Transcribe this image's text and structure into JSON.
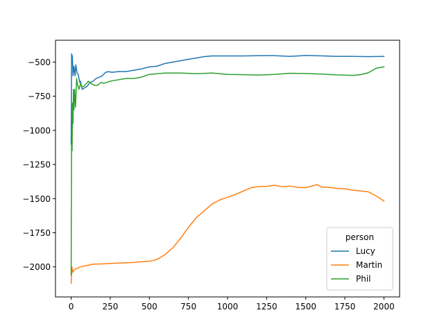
{
  "chart_data": {
    "type": "line",
    "title": "",
    "xlabel": "",
    "ylabel": "",
    "xlim": [
      -100,
      2100
    ],
    "ylim": [
      -2220,
      -340
    ],
    "xticks": [
      0,
      250,
      500,
      750,
      1000,
      1250,
      1500,
      1750,
      2000
    ],
    "yticks": [
      -2000,
      -1750,
      -1500,
      -1250,
      -1000,
      -750,
      -500
    ],
    "grid": false,
    "legend": {
      "title": "person",
      "placement": "lower-right"
    },
    "series": [
      {
        "name": "Lucy",
        "color": "#1f77b4",
        "points": [
          [
            0,
            -1100
          ],
          [
            3,
            -440
          ],
          [
            8,
            -460
          ],
          [
            12,
            -600
          ],
          [
            18,
            -530
          ],
          [
            25,
            -600
          ],
          [
            30,
            -520
          ],
          [
            38,
            -580
          ],
          [
            45,
            -590
          ],
          [
            55,
            -650
          ],
          [
            60,
            -640
          ],
          [
            70,
            -700
          ],
          [
            85,
            -690
          ],
          [
            100,
            -680
          ],
          [
            120,
            -650
          ],
          [
            140,
            -640
          ],
          [
            160,
            -620
          ],
          [
            180,
            -610
          ],
          [
            200,
            -600
          ],
          [
            220,
            -575
          ],
          [
            240,
            -570
          ],
          [
            260,
            -575
          ],
          [
            300,
            -570
          ],
          [
            350,
            -570
          ],
          [
            400,
            -560
          ],
          [
            450,
            -550
          ],
          [
            500,
            -535
          ],
          [
            550,
            -530
          ],
          [
            600,
            -510
          ],
          [
            650,
            -500
          ],
          [
            700,
            -490
          ],
          [
            750,
            -480
          ],
          [
            800,
            -470
          ],
          [
            850,
            -460
          ],
          [
            900,
            -455
          ],
          [
            1000,
            -455
          ],
          [
            1100,
            -455
          ],
          [
            1200,
            -453
          ],
          [
            1300,
            -453
          ],
          [
            1400,
            -458
          ],
          [
            1450,
            -455
          ],
          [
            1500,
            -452
          ],
          [
            1600,
            -454
          ],
          [
            1700,
            -458
          ],
          [
            1800,
            -458
          ],
          [
            1900,
            -460
          ],
          [
            2000,
            -458
          ]
        ]
      },
      {
        "name": "Martin",
        "color": "#ff7f0e",
        "points": [
          [
            0,
            -2120
          ],
          [
            5,
            -2000
          ],
          [
            10,
            -2040
          ],
          [
            20,
            -2020
          ],
          [
            40,
            -2010
          ],
          [
            60,
            -2000
          ],
          [
            100,
            -1990
          ],
          [
            140,
            -1980
          ],
          [
            200,
            -1978
          ],
          [
            250,
            -1975
          ],
          [
            300,
            -1972
          ],
          [
            350,
            -1970
          ],
          [
            400,
            -1968
          ],
          [
            450,
            -1962
          ],
          [
            500,
            -1958
          ],
          [
            530,
            -1952
          ],
          [
            560,
            -1938
          ],
          [
            600,
            -1910
          ],
          [
            650,
            -1860
          ],
          [
            700,
            -1790
          ],
          [
            750,
            -1710
          ],
          [
            800,
            -1640
          ],
          [
            850,
            -1590
          ],
          [
            900,
            -1540
          ],
          [
            950,
            -1510
          ],
          [
            1000,
            -1490
          ],
          [
            1050,
            -1470
          ],
          [
            1100,
            -1445
          ],
          [
            1150,
            -1420
          ],
          [
            1200,
            -1412
          ],
          [
            1250,
            -1410
          ],
          [
            1300,
            -1402
          ],
          [
            1350,
            -1413
          ],
          [
            1400,
            -1408
          ],
          [
            1450,
            -1418
          ],
          [
            1500,
            -1420
          ],
          [
            1550,
            -1404
          ],
          [
            1575,
            -1398
          ],
          [
            1600,
            -1415
          ],
          [
            1650,
            -1418
          ],
          [
            1700,
            -1425
          ],
          [
            1750,
            -1428
          ],
          [
            1800,
            -1438
          ],
          [
            1850,
            -1444
          ],
          [
            1900,
            -1450
          ],
          [
            1950,
            -1480
          ],
          [
            2000,
            -1518
          ]
        ]
      },
      {
        "name": "Phil",
        "color": "#2ca02c",
        "points": [
          [
            0,
            -2060
          ],
          [
            3,
            -1000
          ],
          [
            6,
            -1150
          ],
          [
            9,
            -800
          ],
          [
            12,
            -950
          ],
          [
            15,
            -700
          ],
          [
            18,
            -850
          ],
          [
            22,
            -700
          ],
          [
            28,
            -830
          ],
          [
            35,
            -620
          ],
          [
            40,
            -660
          ],
          [
            50,
            -700
          ],
          [
            60,
            -660
          ],
          [
            70,
            -680
          ],
          [
            80,
            -680
          ],
          [
            95,
            -660
          ],
          [
            110,
            -640
          ],
          [
            130,
            -660
          ],
          [
            150,
            -670
          ],
          [
            170,
            -670
          ],
          [
            190,
            -650
          ],
          [
            210,
            -655
          ],
          [
            250,
            -640
          ],
          [
            300,
            -630
          ],
          [
            350,
            -620
          ],
          [
            400,
            -620
          ],
          [
            450,
            -610
          ],
          [
            500,
            -590
          ],
          [
            550,
            -585
          ],
          [
            600,
            -580
          ],
          [
            700,
            -580
          ],
          [
            800,
            -585
          ],
          [
            900,
            -580
          ],
          [
            1000,
            -590
          ],
          [
            1100,
            -592
          ],
          [
            1200,
            -595
          ],
          [
            1300,
            -590
          ],
          [
            1400,
            -582
          ],
          [
            1500,
            -584
          ],
          [
            1600,
            -588
          ],
          [
            1700,
            -594
          ],
          [
            1800,
            -597
          ],
          [
            1850,
            -592
          ],
          [
            1900,
            -578
          ],
          [
            1950,
            -545
          ],
          [
            2000,
            -535
          ]
        ]
      }
    ]
  }
}
